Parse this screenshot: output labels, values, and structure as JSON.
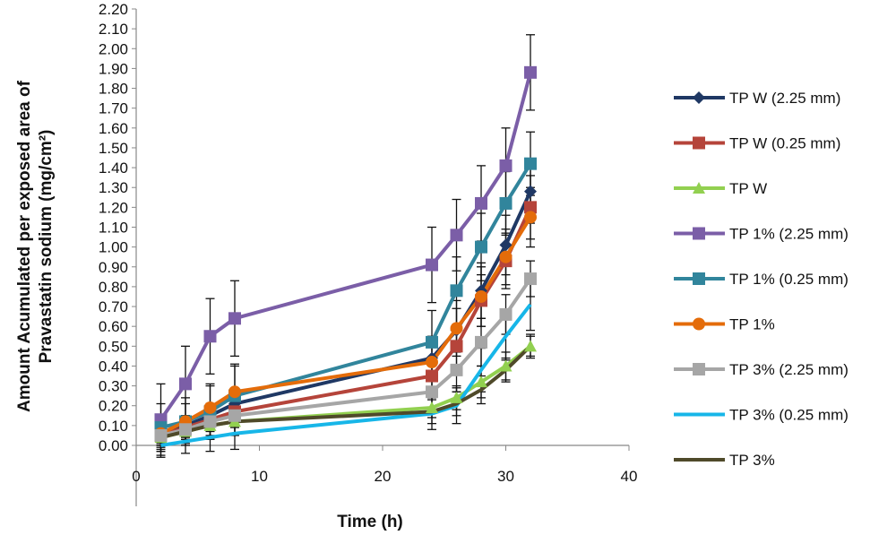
{
  "chart_data": {
    "type": "line",
    "xlabel": "Time (h)",
    "ylabel_line1": "Amount  Acumulated per exposed area of",
    "ylabel_line2": "Pravastatin sodium (mg/cm²)",
    "xlim": [
      0,
      40
    ],
    "ylim": [
      0,
      2.2
    ],
    "xticks": [
      "0",
      "10",
      "20",
      "30",
      "40"
    ],
    "yticks": [
      "0.00",
      "0.10",
      "0.20",
      "0.30",
      "0.40",
      "0.50",
      "0.60",
      "0.70",
      "0.80",
      "0.90",
      "1.00",
      "1.10",
      "1.20",
      "1.30",
      "1.40",
      "1.50",
      "1.60",
      "1.70",
      "1.80",
      "1.90",
      "2.00",
      "2.10",
      "2.20"
    ],
    "grid": false,
    "legend_position": "right",
    "series": [
      {
        "name": "TP W (2.25 mm)",
        "color": "#1f3864",
        "marker": "diamond",
        "x": [
          2,
          4,
          6,
          8,
          24,
          26,
          28,
          30,
          32
        ],
        "y": [
          0.06,
          0.1,
          0.15,
          0.21,
          0.44,
          0.58,
          0.78,
          1.01,
          1.28
        ],
        "err": [
          0.05,
          0.05,
          0.06,
          0.07,
          0.09,
          0.11,
          0.14,
          0.15,
          0.16
        ]
      },
      {
        "name": "TP W (0.25 mm)",
        "color": "#b5443a",
        "marker": "square",
        "x": [
          2,
          4,
          6,
          8,
          24,
          26,
          28,
          30,
          32
        ],
        "y": [
          0.05,
          0.09,
          0.13,
          0.17,
          0.35,
          0.5,
          0.73,
          0.93,
          1.2
        ],
        "err": [
          0.05,
          0.05,
          0.06,
          0.07,
          0.09,
          0.11,
          0.13,
          0.14,
          0.16
        ]
      },
      {
        "name": "TP W",
        "color": "#92d050",
        "marker": "triangle",
        "x": [
          2,
          4,
          6,
          8,
          24,
          26,
          28,
          30,
          32
        ],
        "y": [
          0.04,
          0.07,
          0.1,
          0.12,
          0.19,
          0.24,
          0.32,
          0.4,
          0.5
        ],
        "err": [
          0.04,
          0.04,
          0.05,
          0.06,
          0.05,
          0.06,
          0.08,
          0.07,
          0.06
        ]
      },
      {
        "name": "TP 1% (2.25 mm)",
        "color": "#7b5ea7",
        "marker": "square",
        "x": [
          2,
          4,
          6,
          8,
          24,
          26,
          28,
          30,
          32
        ],
        "y": [
          0.13,
          0.31,
          0.55,
          0.64,
          0.91,
          1.06,
          1.22,
          1.41,
          1.88
        ],
        "err": [
          0.18,
          0.19,
          0.19,
          0.19,
          0.19,
          0.18,
          0.19,
          0.19,
          0.19
        ]
      },
      {
        "name": "TP 1% (0.25 mm)",
        "color": "#31859c",
        "marker": "square",
        "x": [
          2,
          4,
          6,
          8,
          24,
          26,
          28,
          30,
          32
        ],
        "y": [
          0.09,
          0.12,
          0.17,
          0.25,
          0.52,
          0.78,
          1.0,
          1.22,
          1.42
        ],
        "err": [
          0.12,
          0.12,
          0.14,
          0.16,
          0.16,
          0.17,
          0.17,
          0.16,
          0.16
        ]
      },
      {
        "name": "TP 1%",
        "color": "#e46c0a",
        "marker": "circle",
        "x": [
          2,
          4,
          6,
          8,
          24,
          26,
          28,
          30,
          32
        ],
        "y": [
          0.06,
          0.12,
          0.19,
          0.27,
          0.42,
          0.59,
          0.75,
          0.95,
          1.15
        ],
        "err": [
          0.09,
          0.09,
          0.11,
          0.13,
          0.13,
          0.14,
          0.15,
          0.14,
          0.15
        ]
      },
      {
        "name": "TP 3% (2.25 mm)",
        "color": "#a6a6a6",
        "marker": "square",
        "x": [
          2,
          4,
          6,
          8,
          24,
          26,
          28,
          30,
          32
        ],
        "y": [
          0.05,
          0.08,
          0.12,
          0.15,
          0.27,
          0.38,
          0.52,
          0.66,
          0.84
        ],
        "err": [
          0.07,
          0.07,
          0.09,
          0.1,
          0.1,
          0.11,
          0.12,
          0.1,
          0.09
        ]
      },
      {
        "name": "TP 3% (0.25 mm)",
        "color": "#17b6e8",
        "marker": "none",
        "x": [
          2,
          4,
          6,
          8,
          24,
          26,
          28,
          30,
          32
        ],
        "y": [
          0.0,
          0.02,
          0.04,
          0.06,
          0.16,
          0.2,
          0.38,
          0.55,
          0.71
        ],
        "err": [
          0.06,
          0.06,
          0.07,
          0.08,
          0.08,
          0.09,
          0.11,
          0.12,
          0.13
        ]
      },
      {
        "name": "TP 3%",
        "color": "#4f4a2a",
        "marker": "none",
        "x": [
          2,
          4,
          6,
          8,
          24,
          26,
          28,
          30,
          32
        ],
        "y": [
          0.04,
          0.07,
          0.1,
          0.12,
          0.17,
          0.21,
          0.28,
          0.38,
          0.5
        ],
        "err": [
          0.05,
          0.05,
          0.06,
          0.06,
          0.06,
          0.06,
          0.07,
          0.06,
          0.05
        ]
      }
    ]
  }
}
